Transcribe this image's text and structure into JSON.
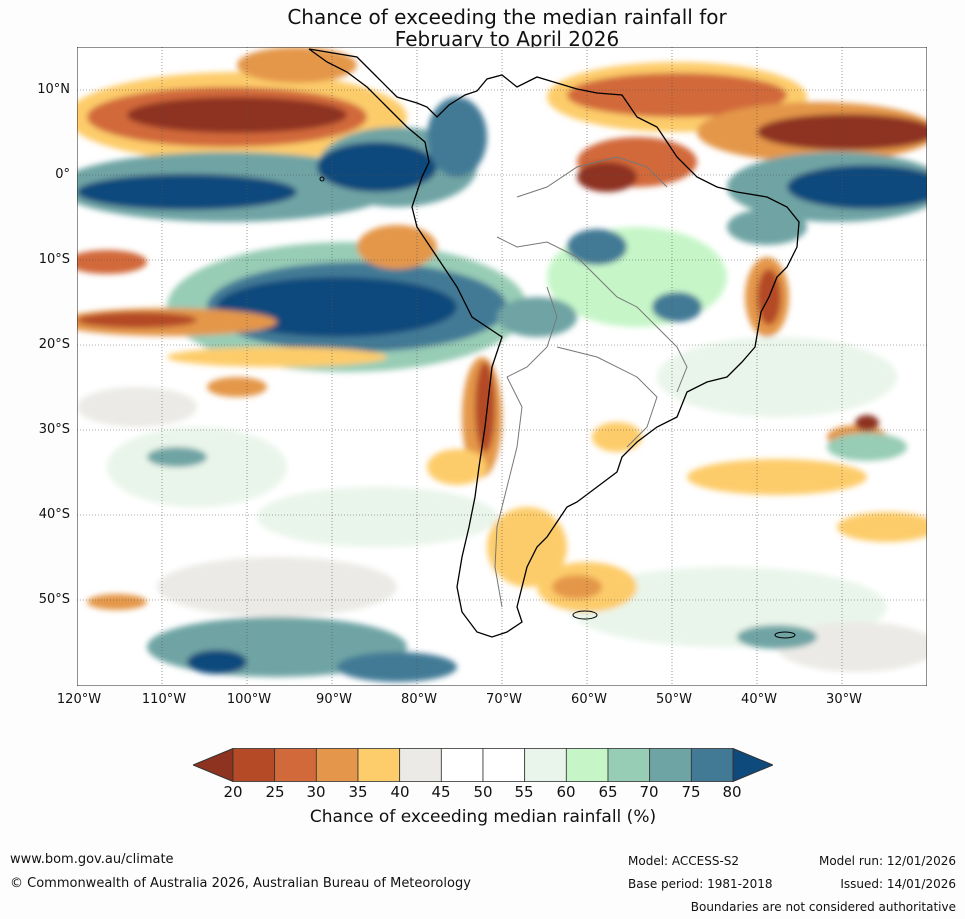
{
  "title": {
    "line1": "Chance of exceeding the median rainfall for",
    "line2": "February to April 2026"
  },
  "map": {
    "lat_ticks": [
      "10°N",
      "0°",
      "10°S",
      "20°S",
      "30°S",
      "40°S",
      "50°S"
    ],
    "lon_ticks": [
      "120°W",
      "110°W",
      "100°W",
      "90°W",
      "80°W",
      "70°W",
      "60°W",
      "50°W",
      "40°W",
      "30°W"
    ]
  },
  "colorbar": {
    "ticks": [
      "20",
      "25",
      "30",
      "35",
      "40",
      "45",
      "50",
      "55",
      "60",
      "65",
      "70",
      "75",
      "80"
    ],
    "colors": [
      "#8e3320",
      "#b44a26",
      "#d2693a",
      "#e4974a",
      "#fdcc6b",
      "#ebeae6",
      "#ffffff",
      "#ffffff",
      "#e9f5ea",
      "#c6f6c8",
      "#97ccb5",
      "#6fa4a4",
      "#427a96",
      "#0e4a7c"
    ],
    "label": "Chance of exceeding median rainfall (%)"
  },
  "footer": {
    "url": "www.bom.gov.au/climate",
    "copyright": "© Commonwealth of Australia 2026, Australian Bureau of Meteorology",
    "model": "Model: ACCESS-S2",
    "base_period": "Base period: 1981-2018",
    "model_run": "Model run: 12/01/2026",
    "issued": "Issued: 14/01/2026",
    "disclaimer": "Boundaries are not considered authoritative"
  }
}
